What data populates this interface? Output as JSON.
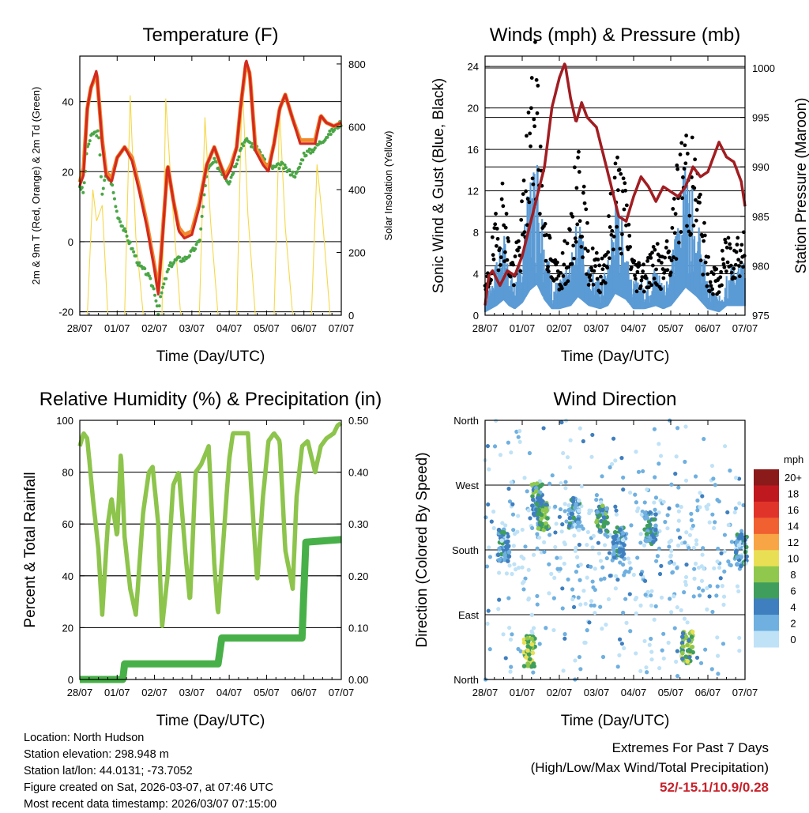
{
  "chart_data": [
    {
      "type": "line",
      "title": "Temperature (F)",
      "xlabel": "Time (Day/UTC)",
      "ylabel": "2m & 9m T (Red, Orange) & 2m Td (Green)",
      "y2label": "Solar Insolation (Yellow)",
      "ylim": [
        -21,
        53
      ],
      "y2lim": [
        0,
        825
      ],
      "xlim": [
        0,
        7
      ],
      "yticks": [
        "-20",
        "0",
        "20",
        "40"
      ],
      "yticks_values": [
        -20,
        0,
        20,
        40
      ],
      "y2ticks": [
        "0",
        "200",
        "400",
        "600",
        "800"
      ],
      "y2ticks_values": [
        0,
        200,
        400,
        600,
        800
      ],
      "xticks": [
        "28/07",
        "01/07",
        "02/07",
        "03/07",
        "04/07",
        "05/07",
        "06/07",
        "07/07"
      ],
      "series": [
        {
          "name": "2m T",
          "color": "#d42a1e",
          "x": [
            0,
            0.1,
            0.2,
            0.3,
            0.45,
            0.5,
            0.6,
            0.7,
            0.85,
            1.0,
            1.2,
            1.4,
            1.6,
            1.8,
            2.0,
            2.1,
            2.2,
            2.35,
            2.5,
            2.65,
            2.8,
            3.0,
            3.2,
            3.4,
            3.6,
            3.8,
            3.9,
            4.05,
            4.2,
            4.3,
            4.45,
            4.55,
            4.7,
            4.9,
            5.05,
            5.2,
            5.35,
            5.5,
            5.7,
            5.9,
            6.1,
            6.3,
            6.45,
            6.6,
            6.8,
            7.0
          ],
          "values": [
            16,
            19,
            38,
            44,
            49,
            42,
            28,
            19,
            17,
            24,
            27,
            23,
            14,
            4,
            -8,
            -15,
            -1,
            22,
            12,
            3,
            1,
            2,
            10,
            22,
            27,
            21,
            18,
            21,
            27,
            38,
            52,
            48,
            26,
            22,
            20,
            28,
            38,
            42,
            35,
            28,
            28,
            28,
            36,
            34,
            33,
            34
          ]
        },
        {
          "name": "9m T",
          "color": "#f08a2c",
          "x": [
            0,
            0.1,
            0.2,
            0.3,
            0.45,
            0.5,
            0.6,
            0.7,
            0.85,
            1.0,
            1.2,
            1.4,
            1.6,
            1.8,
            2.0,
            2.1,
            2.2,
            2.35,
            2.5,
            2.65,
            2.8,
            3.0,
            3.2,
            3.4,
            3.6,
            3.8,
            3.9,
            4.05,
            4.2,
            4.3,
            4.45,
            4.55,
            4.7,
            4.9,
            5.05,
            5.2,
            5.35,
            5.5,
            5.7,
            5.9,
            6.1,
            6.3,
            6.45,
            6.6,
            6.8,
            7.0
          ],
          "values": [
            17,
            21,
            38,
            44,
            48,
            42,
            29,
            20,
            18,
            24,
            27,
            24,
            15,
            5,
            -7,
            -14,
            0,
            22,
            12,
            4,
            2,
            3,
            11,
            22,
            27,
            21,
            19,
            22,
            27,
            38,
            51,
            48,
            27,
            23,
            21,
            28,
            38,
            42,
            35,
            29,
            29,
            29,
            36,
            34,
            33,
            34
          ]
        },
        {
          "name": "2m Td",
          "color": "#4aa646",
          "x": [
            0,
            0.1,
            0.2,
            0.35,
            0.5,
            0.6,
            0.7,
            0.85,
            1.0,
            1.2,
            1.4,
            1.6,
            1.8,
            2.0,
            2.1,
            2.2,
            2.4,
            2.6,
            2.8,
            3.0,
            3.2,
            3.4,
            3.6,
            3.8,
            4.0,
            4.2,
            4.35,
            4.5,
            4.65,
            4.8,
            5.0,
            5.2,
            5.4,
            5.6,
            5.8,
            6.0,
            6.2,
            6.4,
            6.6,
            6.8,
            7.0
          ],
          "values": [
            16,
            14,
            27,
            31,
            31,
            14,
            19,
            17,
            8,
            3,
            -2,
            -7,
            -9,
            -14,
            -20,
            -14,
            -7,
            -5,
            -5,
            -3,
            0,
            20,
            23,
            20,
            17,
            23,
            28,
            29,
            27,
            26,
            22,
            21,
            22,
            20,
            19,
            25,
            26,
            28,
            30,
            32,
            34
          ]
        },
        {
          "name": "Solar Insolation",
          "color": "#f5d84a",
          "axis": "y2",
          "x": [
            0.2,
            0.35,
            0.45,
            0.6,
            0.75,
            1.2,
            1.35,
            1.5,
            1.7,
            2.2,
            2.3,
            2.45,
            2.7,
            3.2,
            3.35,
            3.5,
            3.7,
            4.2,
            4.35,
            4.5,
            4.7,
            5.2,
            5.35,
            5.5,
            5.7,
            6.2,
            6.35,
            6.5,
            6.7
          ],
          "values": [
            0,
            400,
            300,
            350,
            0,
            0,
            700,
            250,
            0,
            0,
            690,
            400,
            0,
            0,
            630,
            300,
            0,
            0,
            750,
            320,
            0,
            0,
            650,
            280,
            0,
            0,
            480,
            300,
            0
          ]
        }
      ]
    },
    {
      "type": "line",
      "title": "Winds (mph) & Pressure (mb)",
      "xlabel": "Time (Day/UTC)",
      "ylabel": "Sonic Wind & Gust (Blue, Black)",
      "y2label": "Station Pressure (Maroon)",
      "ylim": [
        0,
        25
      ],
      "y2lim": [
        975,
        1001.2
      ],
      "xlim": [
        0,
        7
      ],
      "yticks": [
        "0",
        "4",
        "8",
        "12",
        "16",
        "20",
        "24"
      ],
      "yticks_values": [
        0,
        4,
        8,
        12,
        16,
        20,
        24
      ],
      "y2ticks": [
        "975",
        "980",
        "985",
        "990",
        "995",
        "1000"
      ],
      "y2ticks_values": [
        975,
        980,
        985,
        990,
        995,
        1000
      ],
      "xticks": [
        "28/07",
        "01/07",
        "02/07",
        "03/07",
        "04/07",
        "05/07",
        "06/07",
        "07/07"
      ],
      "series": [
        {
          "name": "Sonic Wind",
          "color": "#5b9bd5",
          "x": [
            0,
            0.3,
            0.5,
            0.65,
            0.8,
            1.0,
            1.2,
            1.4,
            1.6,
            1.8,
            2.0,
            2.3,
            2.5,
            2.8,
            3.1,
            3.3,
            3.5,
            3.8,
            4.0,
            4.3,
            4.6,
            4.8,
            5.0,
            5.2,
            5.4,
            5.7,
            6.0,
            6.3,
            6.5,
            6.8,
            7.0
          ],
          "values": [
            1,
            3,
            5,
            3,
            2,
            4,
            8,
            10,
            5,
            2,
            2,
            3,
            6,
            3,
            2,
            3,
            7,
            5,
            2,
            2,
            3,
            2,
            3,
            6,
            9,
            6,
            2,
            1,
            3,
            3,
            3
          ]
        },
        {
          "name": "Gust",
          "color": "#000000",
          "x": [
            0,
            0.3,
            0.5,
            0.65,
            0.8,
            1.0,
            1.2,
            1.4,
            1.6,
            1.8,
            2.0,
            2.3,
            2.5,
            2.8,
            3.1,
            3.3,
            3.5,
            3.8,
            4.0,
            4.3,
            4.6,
            4.8,
            5.0,
            5.2,
            5.4,
            5.7,
            6.0,
            6.3,
            6.5,
            6.8,
            7.0
          ],
          "values": [
            2,
            7,
            10,
            5,
            4,
            8,
            16,
            19,
            9,
            4,
            4,
            6,
            13,
            5,
            4,
            6,
            12,
            9,
            4,
            4,
            5,
            4,
            6,
            11,
            14,
            11,
            4,
            3,
            6,
            6,
            6
          ]
        },
        {
          "name": "Station Pressure",
          "color": "#a11d21",
          "axis": "y2",
          "x": [
            0,
            0.1,
            0.2,
            0.4,
            0.6,
            0.8,
            1.0,
            1.2,
            1.4,
            1.6,
            1.8,
            2.0,
            2.15,
            2.3,
            2.45,
            2.6,
            2.75,
            3.0,
            3.2,
            3.4,
            3.6,
            3.8,
            4.0,
            4.2,
            4.4,
            4.6,
            4.8,
            5.0,
            5.2,
            5.4,
            5.6,
            5.8,
            6.0,
            6.2,
            6.3,
            6.5,
            6.7,
            6.9,
            7.0
          ],
          "values": [
            976,
            979,
            979.5,
            978,
            979.5,
            979,
            981,
            984,
            987,
            990,
            996,
            999,
            1000.5,
            997,
            994.5,
            996.5,
            995,
            994,
            991,
            988,
            985,
            984.5,
            987,
            989,
            988,
            986.5,
            988,
            987.5,
            987,
            988,
            990,
            989,
            989.5,
            991.5,
            992.5,
            991,
            990.5,
            988.5,
            986
          ]
        }
      ]
    },
    {
      "type": "line",
      "title": "Relative Humidity (%) & Precipitation (in)",
      "xlabel": "Time (Day/UTC)",
      "ylabel": "Percent & Total Rainfall",
      "ylim": [
        0,
        100
      ],
      "y2lim": [
        0,
        0.5
      ],
      "xlim": [
        0,
        7
      ],
      "yticks": [
        "0",
        "20",
        "40",
        "60",
        "80",
        "100"
      ],
      "yticks_values": [
        0,
        20,
        40,
        60,
        80,
        100
      ],
      "y2ticks": [
        "0.00",
        "0.10",
        "0.20",
        "0.30",
        "0.40",
        "0.50"
      ],
      "y2ticks_values": [
        0,
        0.1,
        0.2,
        0.3,
        0.4,
        0.5
      ],
      "xticks": [
        "28/07",
        "01/07",
        "02/07",
        "03/07",
        "04/07",
        "05/07",
        "06/07",
        "07/07"
      ],
      "series": [
        {
          "name": "Relative Humidity",
          "color": "#8dc44c",
          "x": [
            0,
            0.1,
            0.2,
            0.35,
            0.5,
            0.6,
            0.75,
            0.85,
            1.0,
            1.1,
            1.2,
            1.35,
            1.5,
            1.7,
            1.85,
            1.95,
            2.1,
            2.2,
            2.35,
            2.5,
            2.65,
            2.85,
            2.95,
            3.1,
            3.25,
            3.45,
            3.6,
            3.7,
            3.85,
            4.0,
            4.1,
            4.3,
            4.5,
            4.65,
            4.75,
            4.9,
            5.05,
            5.2,
            5.35,
            5.5,
            5.7,
            5.8,
            5.95,
            6.1,
            6.3,
            6.45,
            6.6,
            6.8,
            6.9,
            7.0
          ],
          "values": [
            90,
            95,
            93,
            70,
            50,
            25,
            60,
            70,
            55,
            88,
            55,
            35,
            25,
            65,
            80,
            82,
            60,
            20,
            40,
            75,
            80,
            45,
            30,
            80,
            83,
            90,
            45,
            25,
            55,
            85,
            95,
            95,
            95,
            60,
            38,
            70,
            92,
            95,
            92,
            50,
            35,
            70,
            90,
            92,
            80,
            90,
            93,
            95,
            98,
            99
          ]
        },
        {
          "name": "Total Rainfall",
          "color": "#48b048",
          "axis": "y2",
          "x": [
            0,
            1.15,
            1.2,
            3.7,
            3.8,
            5.95,
            6.05,
            7.0
          ],
          "values": [
            0,
            0,
            0.03,
            0.03,
            0.08,
            0.08,
            0.265,
            0.27
          ]
        }
      ]
    },
    {
      "type": "scatter",
      "title": "Wind Direction",
      "xlabel": "Time (Day/UTC)",
      "ylabel": "Direction (Colored By Speed)",
      "ylim": [
        0,
        360
      ],
      "xlim": [
        0,
        7
      ],
      "yticks": [
        "North",
        "East",
        "South",
        "West",
        "North"
      ],
      "yticks_values": [
        0,
        90,
        180,
        270,
        360
      ],
      "xticks": [
        "28/07",
        "01/07",
        "02/07",
        "03/07",
        "04/07",
        "05/07",
        "06/07",
        "07/07"
      ],
      "colorbar_title": "mph",
      "colorbar_labels": [
        "20+",
        "18",
        "16",
        "14",
        "12",
        "10",
        "8",
        "6",
        "4",
        "2",
        "0"
      ],
      "colorbar_colors": [
        "#8b1a1a",
        "#c0181f",
        "#e0342b",
        "#f06030",
        "#f7a545",
        "#e9df55",
        "#8fc84d",
        "#3f9e5c",
        "#3f7fbf",
        "#6fb0e0",
        "#bfe2f7"
      ],
      "clusters": [
        {
          "x": 0.5,
          "dir": 187,
          "speed": 3
        },
        {
          "x": 1.2,
          "dir": 40,
          "speed": 8
        },
        {
          "x": 1.4,
          "dir": 250,
          "speed": 5
        },
        {
          "x": 1.55,
          "dir": 230,
          "speed": 6
        },
        {
          "x": 2.4,
          "dir": 230,
          "speed": 3
        },
        {
          "x": 3.15,
          "dir": 220,
          "speed": 5
        },
        {
          "x": 3.6,
          "dir": 190,
          "speed": 3
        },
        {
          "x": 4.45,
          "dir": 210,
          "speed": 4
        },
        {
          "x": 5.45,
          "dir": 45,
          "speed": 7
        },
        {
          "x": 6.9,
          "dir": 180,
          "speed": 3
        }
      ]
    }
  ],
  "info": {
    "location": "Location: North Hudson",
    "elevation": "Station elevation: 298.948 m",
    "latlon": "Station lat/lon: 44.0131; -73.7052",
    "created": "Figure created on Sat, 2026-03-07, at 07:46 UTC",
    "recent": "Most recent data timestamp: 2026/03/07 07:15:00"
  },
  "extremes": {
    "title": "Extremes For Past 7 Days",
    "subtitle": "(High/Low/Max Wind/Total Precipitation)",
    "value": "52/-15.1/10.9/0.28",
    "color": "#c8202a"
  }
}
